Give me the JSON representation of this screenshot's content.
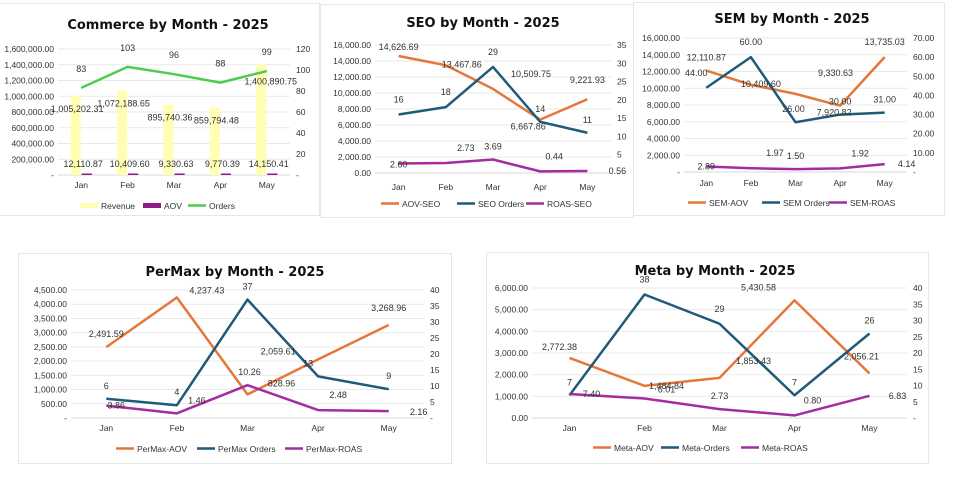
{
  "colors": {
    "revenue": "#ffffb3",
    "aov_bar": "#8b1c8b",
    "orders_green": "#4ccc4c",
    "aov_orange": "#e5773a",
    "orders_blue": "#1f5a78",
    "roas_purple": "#a12da1"
  },
  "chart_data": [
    {
      "id": "commerce",
      "type": "bar",
      "title": "Commerce by Month - 2025",
      "categories": [
        "Jan",
        "Feb",
        "Mar",
        "Apr",
        "May"
      ],
      "y_left": {
        "range": [
          0,
          1600000
        ],
        "ticks": [
          "-",
          "200,000.00",
          "400,000.00",
          "600,000.00",
          "800,000.00",
          "1,000,000.00",
          "1,200,000.00",
          "1,400,000.00",
          "1,600,000.00"
        ]
      },
      "y_right": {
        "range": [
          0,
          120
        ],
        "ticks": [
          "-",
          "20",
          "40",
          "60",
          "80",
          "100",
          "120"
        ]
      },
      "grid": true,
      "legend": "bottom",
      "series": [
        {
          "name": "Revenue",
          "kind": "bar",
          "axis": "left",
          "color_key": "revenue",
          "values": [
            1005202.31,
            1072188.65,
            895740.36,
            859794.48,
            1400890.75
          ],
          "labels": [
            "1,005,202.31",
            "1,072,188.65",
            "895,740.36",
            "859,794.48",
            "1,400,890.75"
          ]
        },
        {
          "name": "AOV",
          "kind": "bar",
          "axis": "left",
          "color_key": "aov_bar",
          "values": [
            12110.87,
            10409.6,
            9330.63,
            9770.39,
            14150.41
          ],
          "labels": [
            "12,110.87",
            "10,409.60",
            "9,330.63",
            "9,770.39",
            "14,150.41"
          ]
        },
        {
          "name": "Orders",
          "kind": "line",
          "axis": "right",
          "color_key": "orders_green",
          "values": [
            83,
            103,
            96,
            88,
            99
          ],
          "labels": [
            "83",
            "103",
            "96",
            "88",
            "99"
          ]
        }
      ]
    },
    {
      "id": "seo",
      "type": "line",
      "title": "SEO by Month - 2025",
      "categories": [
        "Jan",
        "Feb",
        "Mar",
        "Apr",
        "May"
      ],
      "y_left": {
        "range": [
          0,
          16000
        ],
        "ticks": [
          "0.00",
          "2,000.00",
          "4,000.00",
          "6,000.00",
          "8,000.00",
          "10,000.00",
          "12,000.00",
          "14,000.00",
          "16,000.00"
        ]
      },
      "y_right": {
        "range": [
          0,
          35
        ],
        "ticks": [
          "-",
          "5",
          "10",
          "15",
          "20",
          "25",
          "30",
          "35"
        ]
      },
      "grid": true,
      "legend": "bottom",
      "series": [
        {
          "name": "AOV-SEO",
          "axis": "left",
          "color_key": "aov_orange",
          "values": [
            14626.69,
            13467.86,
            10509.75,
            6667.86,
            9221.93
          ],
          "labels": [
            "14,626.69",
            "13,467.86",
            "10,509.75",
            "6,667.86",
            "9,221.93"
          ]
        },
        {
          "name": "SEO Orders",
          "axis": "right",
          "color_key": "orders_blue",
          "values": [
            16,
            18,
            29,
            14,
            11
          ],
          "labels": [
            "16",
            "18",
            "29",
            "14",
            "11"
          ]
        },
        {
          "name": "ROAS-SEO",
          "axis": "right",
          "color_key": "roas_purple",
          "values": [
            2.6,
            2.73,
            3.69,
            0.44,
            0.56
          ],
          "labels": [
            "2.60",
            "2.73",
            "3.69",
            "0.44",
            "0.56"
          ]
        }
      ]
    },
    {
      "id": "sem",
      "type": "line",
      "title": "SEM by Month - 2025",
      "categories": [
        "Jan",
        "Feb",
        "Mar",
        "Apr",
        "May"
      ],
      "y_left": {
        "range": [
          0,
          16000
        ],
        "ticks": [
          "-",
          "2,000.00",
          "4,000.00",
          "6,000.00",
          "8,000.00",
          "10,000.00",
          "12,000.00",
          "14,000.00",
          "16,000.00"
        ]
      },
      "y_right": {
        "range": [
          0,
          70
        ],
        "ticks": [
          "-",
          "10.00",
          "20.00",
          "30.00",
          "40.00",
          "50.00",
          "60.00",
          "70.00"
        ]
      },
      "grid": true,
      "legend": "bottom",
      "series": [
        {
          "name": "SEM-AOV",
          "axis": "left",
          "color_key": "aov_orange",
          "values": [
            12110.87,
            10409.6,
            9330.63,
            7920.82,
            13735.03
          ],
          "labels": [
            "12,110.87",
            "10,409.60",
            "9,330.63",
            "7,920.82",
            "13,735.03"
          ]
        },
        {
          "name": "SEM Orders",
          "axis": "right",
          "color_key": "orders_blue",
          "values": [
            44,
            60,
            26,
            30,
            31
          ],
          "labels": [
            "44.00",
            "60.00",
            "26.00",
            "30.00",
            "31.00"
          ]
        },
        {
          "name": "SEM-ROAS",
          "axis": "right",
          "color_key": "roas_purple",
          "values": [
            2.89,
            1.97,
            1.5,
            1.92,
            4.14
          ],
          "labels": [
            "2.89",
            "1.97",
            "1.50",
            "1.92",
            "4.14"
          ]
        }
      ]
    },
    {
      "id": "permax",
      "type": "line",
      "title": "PerMax by Month - 2025",
      "categories": [
        "Jan",
        "Feb",
        "Mar",
        "Apr",
        "May"
      ],
      "y_left": {
        "range": [
          0,
          4500
        ],
        "ticks": [
          "-",
          "500.00",
          "1,000.00",
          "1,500.00",
          "2,000.00",
          "2,500.00",
          "3,000.00",
          "3,500.00",
          "4,000.00",
          "4,500.00"
        ]
      },
      "y_right": {
        "range": [
          0,
          40
        ],
        "ticks": [
          "-",
          "5",
          "10",
          "15",
          "20",
          "25",
          "30",
          "35",
          "40"
        ]
      },
      "grid": true,
      "legend": "bottom",
      "series": [
        {
          "name": "PerMax-AOV",
          "axis": "left",
          "color_key": "aov_orange",
          "values": [
            2491.59,
            4237.43,
            828.96,
            2059.61,
            3268.96
          ],
          "labels": [
            "2,491.59",
            "4,237.43",
            "828.96",
            "2,059.61",
            "3,268.96"
          ]
        },
        {
          "name": "PerMax Orders",
          "axis": "right",
          "color_key": "orders_blue",
          "values": [
            6,
            4,
            37,
            13,
            9
          ],
          "labels": [
            "6",
            "4",
            "37",
            "13",
            "9"
          ]
        },
        {
          "name": "PerMax-ROAS",
          "axis": "right",
          "color_key": "roas_purple",
          "values": [
            3.86,
            1.46,
            10.26,
            2.48,
            2.16
          ],
          "labels": [
            "3.86",
            "1.46",
            "10.26",
            "2.48",
            "2.16"
          ]
        }
      ]
    },
    {
      "id": "meta",
      "type": "line",
      "title": "Meta by Month - 2025",
      "categories": [
        "Jan",
        "Feb",
        "Mar",
        "Apr",
        "May"
      ],
      "y_left": {
        "range": [
          0,
          6000
        ],
        "ticks": [
          "0.00",
          "1,000.00",
          "2,000.00",
          "3,000.00",
          "4,000.00",
          "5,000.00",
          "6,000.00"
        ]
      },
      "y_right": {
        "range": [
          0,
          40
        ],
        "ticks": [
          "-",
          "5",
          "10",
          "15",
          "20",
          "25",
          "30",
          "35",
          "40"
        ]
      },
      "grid": true,
      "legend": "bottom",
      "series": [
        {
          "name": "Meta-AOV",
          "axis": "left",
          "color_key": "aov_orange",
          "values": [
            2772.38,
            1484.84,
            1853.43,
            5430.58,
            2056.21
          ],
          "labels": [
            "2,772.38",
            "1,484.84",
            "1,853.43",
            "5,430.58",
            "2,056.21"
          ]
        },
        {
          "name": "Meta-Orders",
          "axis": "right",
          "color_key": "orders_blue",
          "values": [
            7,
            38,
            29,
            7,
            26
          ],
          "labels": [
            "7",
            "38",
            "29",
            "7",
            "26"
          ]
        },
        {
          "name": "Meta-ROAS",
          "axis": "right",
          "color_key": "roas_purple",
          "values": [
            7.4,
            6.01,
            2.73,
            0.8,
            6.83
          ],
          "labels": [
            "7.40",
            "6.01",
            "2.73",
            "0.80",
            "6.83"
          ]
        }
      ]
    }
  ]
}
